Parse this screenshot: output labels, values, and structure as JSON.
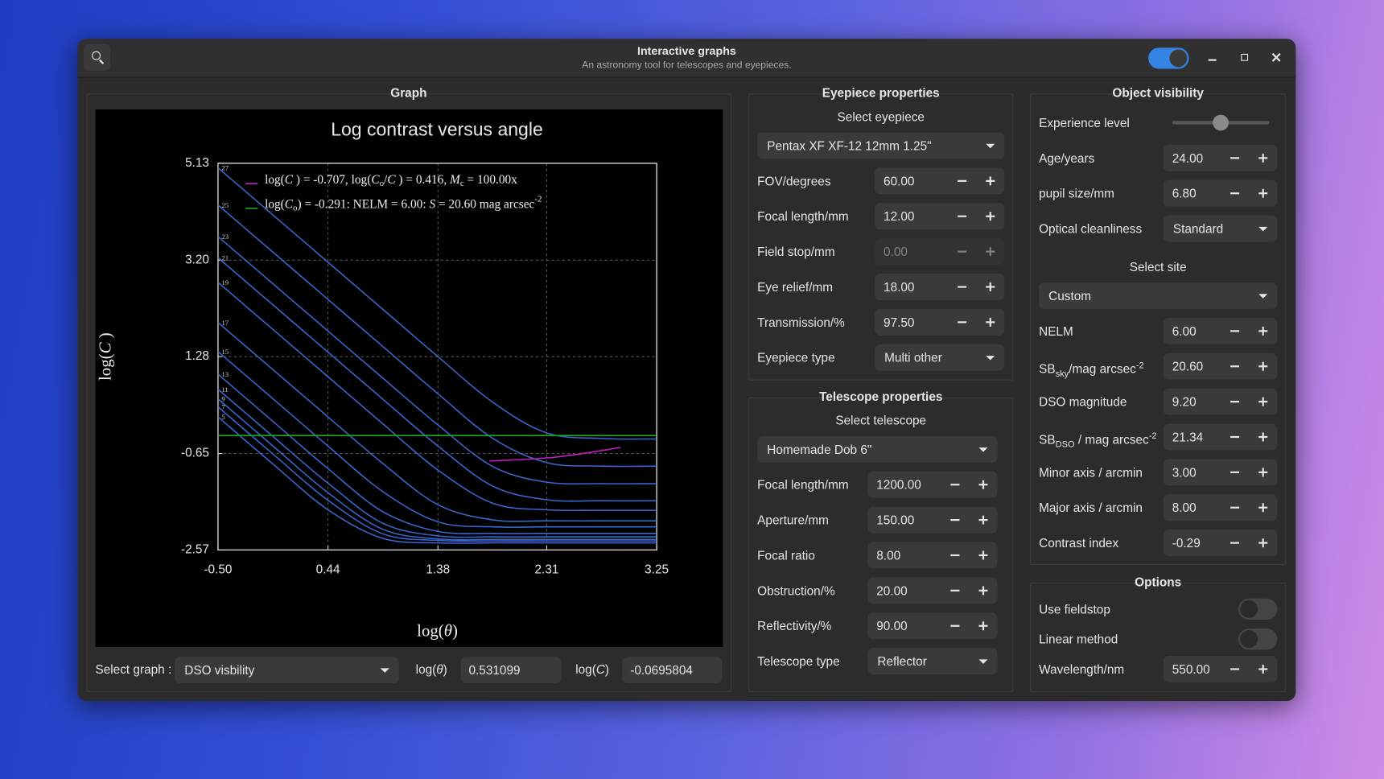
{
  "window": {
    "title": "Interactive graphs",
    "subtitle": "An astronomy tool for telescopes and eyepieces."
  },
  "graph": {
    "heading": "Graph",
    "select_label": "Select graph :",
    "select_value": "DSO visbility",
    "theta_label": [
      {
        "text": "log(",
        "style": "n"
      },
      {
        "text": "θ",
        "style": "i"
      },
      {
        "text": ")",
        "style": "n"
      }
    ],
    "theta_value": "0.531099",
    "c_label": [
      {
        "text": "log(",
        "style": "n"
      },
      {
        "text": "C",
        "style": "i"
      },
      {
        "text": ")",
        "style": "n"
      }
    ],
    "c_value": "-0.0695804"
  },
  "chart_data": {
    "type": "line",
    "title": "Log contrast versus angle",
    "xlabel": [
      {
        "text": "log(",
        "style": "n"
      },
      {
        "text": "θ",
        "style": "i"
      },
      {
        "text": ")",
        "style": "n"
      }
    ],
    "ylabel": [
      {
        "text": "log(",
        "style": "n"
      },
      {
        "text": "C",
        "style": "i"
      },
      {
        "text": " )",
        "style": "n"
      }
    ],
    "xlim": [
      -0.5,
      3.25
    ],
    "ylim": [
      -2.57,
      5.13
    ],
    "xticks": [
      {
        "value": -0.5,
        "label": "-0.50"
      },
      0.44,
      1.38,
      2.31,
      3.25
    ],
    "yticks": [
      -2.57,
      -0.65,
      1.28,
      {
        "value": 3.2,
        "label": "3.20"
      },
      5.13
    ],
    "grid": true,
    "x": [
      -0.5,
      -0.03,
      0.44,
      0.91,
      1.38,
      1.85,
      2.31,
      2.78,
      3.25
    ],
    "series": [
      {
        "name": "27",
        "color": "#3a68cf",
        "values": [
          5.04,
          4.1,
          3.16,
          2.22,
          1.28,
          0.37,
          -0.24,
          -0.35,
          -0.36
        ]
      },
      {
        "name": "25",
        "color": "#3a68cf",
        "values": [
          4.3,
          3.36,
          2.42,
          1.48,
          0.54,
          -0.35,
          -0.83,
          -0.9,
          -0.9
        ]
      },
      {
        "name": "23",
        "color": "#3a68cf",
        "values": [
          3.67,
          2.73,
          1.79,
          0.85,
          -0.08,
          -0.91,
          -1.22,
          -1.25,
          -1.25
        ]
      },
      {
        "name": "21",
        "color": "#3a68cf",
        "values": [
          3.25,
          2.31,
          1.37,
          0.43,
          -0.5,
          -1.3,
          -1.57,
          -1.59,
          -1.59
        ]
      },
      {
        "name": "19",
        "color": "#3a68cf",
        "values": [
          2.76,
          1.82,
          0.88,
          -0.06,
          -0.98,
          -1.64,
          -1.77,
          -1.78,
          -1.78
        ]
      },
      {
        "name": "17",
        "color": "#3a68cf",
        "values": [
          1.96,
          1.02,
          0.08,
          -0.85,
          -1.67,
          -1.97,
          -1.99,
          -1.99,
          -1.99
        ]
      },
      {
        "name": "15",
        "color": "#3a68cf",
        "values": [
          1.38,
          0.44,
          -0.5,
          -1.41,
          -2.01,
          -2.11,
          -2.11,
          -2.11,
          -2.11
        ]
      },
      {
        "name": "13",
        "color": "#3a68cf",
        "values": [
          0.93,
          -0.01,
          -0.95,
          -1.81,
          -2.2,
          -2.24,
          -2.24,
          -2.24,
          -2.24
        ]
      },
      {
        "name": "11",
        "color": "#3a68cf",
        "values": [
          0.63,
          -0.31,
          -1.24,
          -2.04,
          -2.29,
          -2.31,
          -2.31,
          -2.31,
          -2.31
        ]
      },
      {
        "name": "9",
        "color": "#3a68cf",
        "values": [
          0.44,
          -0.5,
          -1.43,
          -2.16,
          -2.35,
          -2.36,
          -2.36,
          -2.36,
          -2.36
        ]
      },
      {
        "name": "7",
        "color": "#3a68cf",
        "values": [
          0.28,
          -0.66,
          -1.58,
          -2.25,
          -2.38,
          -2.39,
          -2.39,
          -2.39,
          -2.39
        ]
      },
      {
        "name": "5",
        "color": "#3a68cf",
        "values": [
          0.08,
          -0.86,
          -1.77,
          -2.34,
          -2.43,
          -2.43,
          -2.43,
          -2.43,
          -2.43
        ]
      },
      {
        "name": [
          {
            "text": "log(",
            "style": "n"
          },
          {
            "text": "C",
            "style": "i"
          },
          {
            "text": " ) = -0.707, log(",
            "style": "n"
          },
          {
            "text": "C",
            "style": "i"
          },
          {
            "text": "o",
            "style": "sub"
          },
          {
            "text": "/",
            "style": "n"
          },
          {
            "text": "C",
            "style": "i"
          },
          {
            "text": " ) = 0.416, ",
            "style": "n"
          },
          {
            "text": "M",
            "style": "i"
          },
          {
            "text": "c",
            "style": "sub"
          },
          {
            "text": " = 100.00x",
            "style": "n"
          }
        ],
        "color": "#c21fc2",
        "x": [
          1.82,
          2.39,
          2.94
        ],
        "values": [
          -0.8,
          -0.72,
          -0.53
        ]
      },
      {
        "name": [
          {
            "text": "log(",
            "style": "n"
          },
          {
            "text": "C",
            "style": "i"
          },
          {
            "text": "o",
            "style": "sub"
          },
          {
            "text": ") = -0.291: NELM = 6.00: ",
            "style": "n"
          },
          {
            "text": "S",
            "style": "i"
          },
          {
            "text": " = 20.60 mag arcsec",
            "style": "n"
          },
          {
            "text": "-2",
            "style": "sup"
          }
        ],
        "color": "#1fa51f",
        "x": [
          -0.5,
          3.25
        ],
        "values": [
          -0.291,
          -0.291
        ]
      }
    ]
  },
  "eyepiece": {
    "heading": "Eyepiece properties",
    "items": [
      {
        "kind": "subheading",
        "text": "Select eyepiece"
      },
      {
        "kind": "select",
        "text": "Pentax XF XF-12 12mm 1.25\""
      },
      {
        "kind": "spin",
        "label": "FOV/degrees",
        "value": "60.00"
      },
      {
        "kind": "spin",
        "label": "Focal length/mm",
        "value": "12.00"
      },
      {
        "kind": "spin",
        "label": "Field stop/mm",
        "value": "0.00",
        "enabled": false
      },
      {
        "kind": "spin",
        "label": "Eye relief/mm",
        "value": "18.00"
      },
      {
        "kind": "spin",
        "label": "Transmission/%",
        "value": "97.50"
      },
      {
        "kind": "dropdown",
        "label": "Eyepiece type",
        "value": "Multi other"
      }
    ]
  },
  "telescope": {
    "heading": "Telescope properties",
    "items": [
      {
        "kind": "subheading",
        "text": "Select telescope"
      },
      {
        "kind": "select",
        "text": "Homemade Dob 6\""
      },
      {
        "kind": "spin",
        "label": "Focal length/mm",
        "value": "1200.00"
      },
      {
        "kind": "spin",
        "label": "Aperture/mm",
        "value": "150.00"
      },
      {
        "kind": "spin",
        "label": "Focal ratio",
        "value": "8.00"
      },
      {
        "kind": "spin",
        "label": "Obstruction/%",
        "value": "20.00"
      },
      {
        "kind": "spin",
        "label": "Reflectivity/%",
        "value": "90.00"
      },
      {
        "kind": "dropdown",
        "label": "Telescope type",
        "value": "Reflector"
      }
    ]
  },
  "object": {
    "heading": "Object visibility",
    "items": [
      {
        "kind": "slider",
        "label": "Experience level"
      },
      {
        "kind": "spin",
        "label": "Age/years",
        "value": "24.00"
      },
      {
        "kind": "spin",
        "label": "pupil size/mm",
        "value": "6.80"
      },
      {
        "kind": "dropdown",
        "label": "Optical cleanliness",
        "value": "Standard"
      },
      {
        "kind": "subheading",
        "text": "Select site"
      },
      {
        "kind": "select",
        "text": "Custom"
      },
      {
        "kind": "spin",
        "label": "NELM",
        "value": "6.00"
      },
      {
        "kind": "spin",
        "label": [
          {
            "text": "SB",
            "style": "n"
          },
          {
            "text": "sky",
            "style": "sub"
          },
          {
            "text": "/mag arcsec",
            "style": "n"
          },
          {
            "text": "-2",
            "style": "sup"
          }
        ],
        "value": "20.60"
      },
      {
        "kind": "spin",
        "label": "DSO magnitude",
        "value": "9.20"
      },
      {
        "kind": "spin",
        "label": [
          {
            "text": "SB",
            "style": "n"
          },
          {
            "text": "DSO",
            "style": "sub"
          },
          {
            "text": " / mag arcsec",
            "style": "n"
          },
          {
            "text": "-2",
            "style": "sup"
          }
        ],
        "value": "21.34"
      },
      {
        "kind": "spin",
        "label": "Minor axis / arcmin",
        "value": "3.00"
      },
      {
        "kind": "spin",
        "label": "Major axis / arcmin",
        "value": "8.00"
      },
      {
        "kind": "spin",
        "label": "Contrast index",
        "value": "-0.29"
      }
    ]
  },
  "options": {
    "heading": "Options",
    "items": [
      {
        "kind": "toggle",
        "label": "Use fieldstop",
        "on": false
      },
      {
        "kind": "toggle",
        "label": "Linear method",
        "on": false
      },
      {
        "kind": "spin",
        "label": "Wavelength/nm",
        "value": "550.00"
      }
    ]
  }
}
